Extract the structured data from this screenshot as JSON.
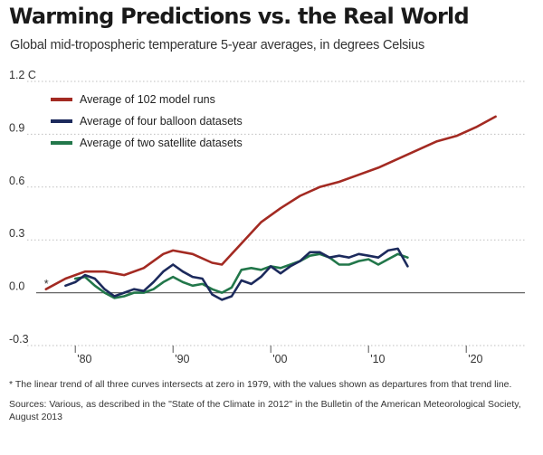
{
  "title": "Warming Predictions vs. the Real World",
  "subtitle": "Global mid-tropospheric temperature 5-year averages, in degrees Celsius",
  "colors": {
    "models": "#a32a22",
    "balloons": "#1c2a5c",
    "satellites": "#22774a",
    "grid": "#bfbfbf",
    "zero": "#666666"
  },
  "chart_data": {
    "type": "line",
    "title": "Warming Predictions vs. the Real World",
    "xlabel": "",
    "ylabel": "",
    "xlim": [
      1976,
      2026
    ],
    "ylim": [
      -0.3,
      1.2
    ],
    "y_ticks": [
      {
        "value": 1.2,
        "label": "1.2 C"
      },
      {
        "value": 0.9,
        "label": "0.9"
      },
      {
        "value": 0.6,
        "label": "0.6"
      },
      {
        "value": 0.3,
        "label": "0.3"
      },
      {
        "value": 0.0,
        "label": "0.0"
      },
      {
        "value": -0.3,
        "label": "-0.3"
      }
    ],
    "x_ticks": [
      {
        "value": 1980,
        "label": "'80"
      },
      {
        "value": 1990,
        "label": "'90"
      },
      {
        "value": 2000,
        "label": "'00"
      },
      {
        "value": 2010,
        "label": "'10"
      },
      {
        "value": 2020,
        "label": "'20"
      }
    ],
    "annotation": {
      "text": "*",
      "x": 1977,
      "y": 0.05
    },
    "series": [
      {
        "name": "Average of 102 model runs",
        "color_key": "models",
        "x": [
          1977,
          1979,
          1981,
          1983,
          1985,
          1987,
          1989,
          1990,
          1992,
          1994,
          1995,
          1997,
          1999,
          2001,
          2003,
          2005,
          2007,
          2009,
          2011,
          2013,
          2015,
          2017,
          2019,
          2021,
          2023
        ],
        "values": [
          0.02,
          0.08,
          0.12,
          0.12,
          0.1,
          0.14,
          0.22,
          0.24,
          0.22,
          0.17,
          0.16,
          0.28,
          0.4,
          0.48,
          0.55,
          0.6,
          0.63,
          0.67,
          0.71,
          0.76,
          0.81,
          0.86,
          0.89,
          0.94,
          1.0
        ]
      },
      {
        "name": "Average of four balloon datasets",
        "color_key": "balloons",
        "x": [
          1979,
          1980,
          1981,
          1982,
          1983,
          1984,
          1985,
          1986,
          1987,
          1988,
          1989,
          1990,
          1991,
          1992,
          1993,
          1994,
          1995,
          1996,
          1997,
          1998,
          1999,
          2000,
          2001,
          2002,
          2003,
          2004,
          2005,
          2006,
          2007,
          2008,
          2009,
          2010,
          2011,
          2012,
          2013,
          2014
        ],
        "values": [
          0.04,
          0.06,
          0.1,
          0.08,
          0.02,
          -0.02,
          0.0,
          0.02,
          0.01,
          0.06,
          0.12,
          0.16,
          0.12,
          0.09,
          0.08,
          -0.01,
          -0.04,
          -0.02,
          0.07,
          0.05,
          0.09,
          0.15,
          0.11,
          0.15,
          0.18,
          0.23,
          0.23,
          0.2,
          0.21,
          0.2,
          0.22,
          0.21,
          0.2,
          0.24,
          0.25,
          0.15
        ]
      },
      {
        "name": "Average of two satellite datasets",
        "color_key": "satellites",
        "x": [
          1980,
          1981,
          1982,
          1983,
          1984,
          1985,
          1986,
          1987,
          1988,
          1989,
          1990,
          1991,
          1992,
          1993,
          1994,
          1995,
          1996,
          1997,
          1998,
          1999,
          2000,
          2001,
          2002,
          2003,
          2004,
          2005,
          2006,
          2007,
          2008,
          2009,
          2010,
          2011,
          2012,
          2013,
          2014
        ],
        "values": [
          0.08,
          0.09,
          0.04,
          0.0,
          -0.03,
          -0.02,
          0.0,
          0.0,
          0.02,
          0.06,
          0.09,
          0.06,
          0.04,
          0.05,
          0.02,
          0.0,
          0.03,
          0.13,
          0.14,
          0.13,
          0.15,
          0.14,
          0.16,
          0.18,
          0.21,
          0.22,
          0.2,
          0.16,
          0.16,
          0.18,
          0.19,
          0.16,
          0.19,
          0.22,
          0.2
        ]
      }
    ],
    "legend": {
      "placement": "top-left"
    }
  },
  "footnote": "* The linear trend of all three curves intersects at zero in 1979, with the values shown as departures from that trend line.",
  "sources": "Sources: Various, as described in the \"State of the Climate in 2012\" in the Bulletin of the American Meteorological Society, August 2013"
}
